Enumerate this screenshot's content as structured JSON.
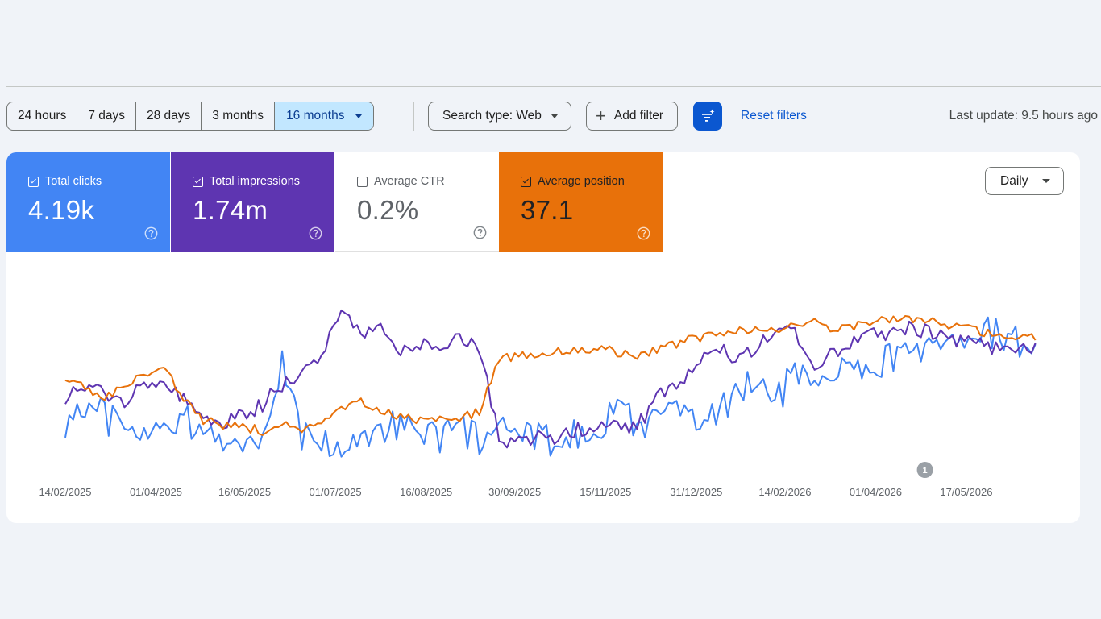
{
  "time_ranges": [
    {
      "label": "24 hours",
      "active": false
    },
    {
      "label": "7 days",
      "active": false
    },
    {
      "label": "28 days",
      "active": false
    },
    {
      "label": "3 months",
      "active": false
    },
    {
      "label": "16 months",
      "active": true
    }
  ],
  "filters": {
    "search_type_label": "Search type: Web",
    "add_filter_label": "Add filter",
    "reset_label": "Reset filters"
  },
  "last_update": "Last update: 9.5 hours ago",
  "metrics": [
    {
      "label": "Total clicks",
      "value": "4.19k",
      "checked": true,
      "color": "#4285f4"
    },
    {
      "label": "Total impressions",
      "value": "1.74m",
      "checked": true,
      "color": "#5e35b1"
    },
    {
      "label": "Average CTR",
      "value": "0.2%",
      "checked": false,
      "color": "#00897b"
    },
    {
      "label": "Average position",
      "value": "37.1",
      "checked": true,
      "color": "#e8710a"
    }
  ],
  "granularity": "Daily",
  "annotation": {
    "label": "1",
    "date": "26/04/2026"
  },
  "chart_data": {
    "type": "line",
    "x_start": "14/02/2025",
    "x_end": "22/06/2026",
    "x_ticks": [
      "14/02/2025",
      "01/04/2025",
      "16/05/2025",
      "01/07/2025",
      "16/08/2025",
      "30/09/2025",
      "15/11/2025",
      "31/12/2025",
      "14/02/2026",
      "01/04/2026",
      "17/05/2026"
    ],
    "grid": false,
    "y_axis_labels": false,
    "series": [
      {
        "name": "Total clicks",
        "color": "#4285f4",
        "interval_days": 10,
        "relative_values": [
          0.25,
          0.35,
          0.3,
          0.22,
          0.15,
          0.22,
          0.28,
          0.2,
          0.12,
          0.1,
          0.14,
          0.62,
          0.15,
          0.12,
          0.1,
          0.18,
          0.22,
          0.25,
          0.2,
          0.18,
          0.22,
          0.15,
          0.18,
          0.2,
          0.15,
          0.12,
          0.18,
          0.15,
          0.42,
          0.2,
          0.3,
          0.35,
          0.25,
          0.32,
          0.45,
          0.5,
          0.42,
          0.55,
          0.48,
          0.55,
          0.6,
          0.58,
          0.7,
          0.68,
          0.75,
          0.78,
          0.8,
          0.85,
          0.78
        ]
      },
      {
        "name": "Total impressions",
        "color": "#5e35b1",
        "interval_days": 10,
        "relative_values": [
          0.4,
          0.45,
          0.42,
          0.38,
          0.5,
          0.48,
          0.38,
          0.25,
          0.22,
          0.28,
          0.35,
          0.48,
          0.55,
          0.68,
          0.98,
          0.8,
          0.85,
          0.7,
          0.72,
          0.75,
          0.78,
          0.72,
          0.12,
          0.1,
          0.15,
          0.12,
          0.2,
          0.18,
          0.22,
          0.2,
          0.4,
          0.45,
          0.6,
          0.75,
          0.65,
          0.72,
          0.8,
          0.82,
          0.6,
          0.7,
          0.75,
          0.8,
          0.82,
          0.85,
          0.8,
          0.75,
          0.8,
          0.72,
          0.7
        ]
      },
      {
        "name": "Average position",
        "color": "#e8710a",
        "interval_days": 10,
        "relative_values": [
          0.52,
          0.46,
          0.4,
          0.45,
          0.55,
          0.6,
          0.38,
          0.25,
          0.22,
          0.2,
          0.18,
          0.22,
          0.18,
          0.22,
          0.32,
          0.36,
          0.3,
          0.27,
          0.25,
          0.25,
          0.27,
          0.3,
          0.65,
          0.66,
          0.68,
          0.7,
          0.7,
          0.72,
          0.68,
          0.66,
          0.7,
          0.74,
          0.78,
          0.8,
          0.82,
          0.84,
          0.82,
          0.86,
          0.88,
          0.84,
          0.86,
          0.88,
          0.9,
          0.9,
          0.88,
          0.86,
          0.84,
          0.8,
          0.79
        ]
      }
    ]
  }
}
